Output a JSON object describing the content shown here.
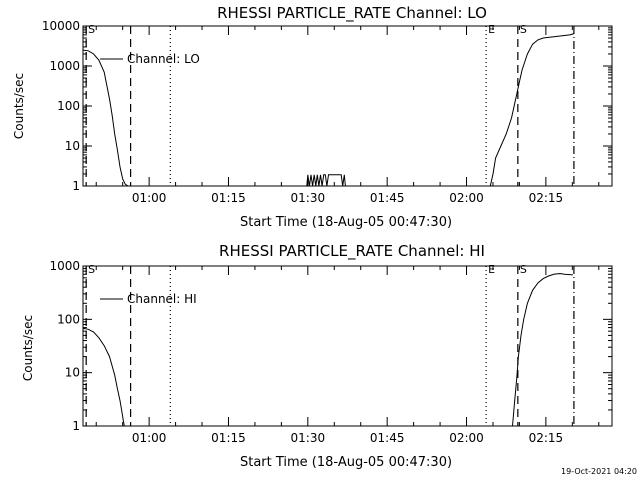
{
  "colors": {
    "background": "#ffffff",
    "foreground": "#000000"
  },
  "footer_timestamp": "19-Oct-2021 04:20",
  "chart_data": [
    {
      "type": "line",
      "title": "RHESSI PARTICLE_RATE Channel: LO",
      "xlabel": "Start Time (18-Aug-05 00:47:30)",
      "ylabel": "Counts/sec",
      "x_unit": "minutes after 00:47:30",
      "xlim": [
        0,
        100
      ],
      "ylim": [
        1,
        10000
      ],
      "yscale": "log",
      "x_ticks": [
        {
          "x": 12.5,
          "label": "01:00"
        },
        {
          "x": 27.5,
          "label": "01:15"
        },
        {
          "x": 42.5,
          "label": "01:30"
        },
        {
          "x": 57.5,
          "label": "01:45"
        },
        {
          "x": 72.5,
          "label": "02:00"
        },
        {
          "x": 87.5,
          "label": "02:15"
        }
      ],
      "y_ticks": [
        {
          "y": 1,
          "label": "1"
        },
        {
          "y": 10,
          "label": "10"
        },
        {
          "y": 100,
          "label": "100"
        },
        {
          "y": 1000,
          "label": "1000"
        },
        {
          "y": 10000,
          "label": "10000"
        }
      ],
      "legend": {
        "label": "Channel: LO",
        "position": "top-left"
      },
      "markers": [
        {
          "x": 0.6,
          "style": "dashed",
          "label": "S"
        },
        {
          "x": 9.0,
          "style": "dashed",
          "label": ""
        },
        {
          "x": 16.5,
          "style": "dotted",
          "label": ""
        },
        {
          "x": 76.2,
          "style": "dotted",
          "label": "E"
        },
        {
          "x": 82.2,
          "style": "dashed",
          "label": "S"
        },
        {
          "x": 92.8,
          "style": "dashdot",
          "label": ""
        }
      ],
      "series": [
        {
          "x": [
            0,
            1,
            2,
            3,
            4,
            5,
            5.5,
            6,
            6.5,
            7,
            7.5,
            8,
            8.5
          ],
          "y": [
            2500,
            2400,
            2000,
            1400,
            700,
            150,
            60,
            20,
            8,
            3,
            1.5,
            1.1,
            1
          ]
        },
        {
          "x": [
            42.3,
            42.5,
            42.8,
            43.1,
            43.4,
            43.7,
            44.0,
            44.3,
            44.6,
            44.9,
            45.2,
            45.5,
            45.8,
            46.1,
            46.4,
            46.7,
            47.0,
            47.3,
            47.6,
            47.9,
            48.2,
            48.5,
            48.8,
            49.1,
            49.4,
            49.6
          ],
          "y": [
            1,
            1.9,
            1,
            1.9,
            1,
            1.9,
            1,
            1.9,
            1,
            1.9,
            1,
            1.9,
            1.9,
            1,
            1.9,
            1.9,
            1.9,
            1.9,
            1.9,
            1.9,
            1.9,
            1.9,
            1.9,
            1,
            1.9,
            1
          ]
        },
        {
          "x": [
            77.0,
            77.5,
            78,
            79,
            80,
            81,
            82,
            82.5,
            83,
            84,
            85,
            86,
            87,
            88,
            89,
            90,
            91,
            92,
            92.6,
            92.8
          ],
          "y": [
            1,
            2,
            5,
            10,
            20,
            50,
            200,
            400,
            800,
            2000,
            3500,
            4500,
            5000,
            5200,
            5400,
            5600,
            5800,
            6000,
            6300,
            6500
          ]
        }
      ]
    },
    {
      "type": "line",
      "title": "RHESSI PARTICLE_RATE Channel: HI",
      "xlabel": "Start Time (18-Aug-05 00:47:30)",
      "ylabel": "Counts/sec",
      "x_unit": "minutes after 00:47:30",
      "xlim": [
        0,
        100
      ],
      "ylim": [
        1,
        1000
      ],
      "yscale": "log",
      "x_ticks": [
        {
          "x": 12.5,
          "label": "01:00"
        },
        {
          "x": 27.5,
          "label": "01:15"
        },
        {
          "x": 42.5,
          "label": "01:30"
        },
        {
          "x": 57.5,
          "label": "01:45"
        },
        {
          "x": 72.5,
          "label": "02:00"
        },
        {
          "x": 87.5,
          "label": "02:15"
        }
      ],
      "y_ticks": [
        {
          "y": 1,
          "label": "1"
        },
        {
          "y": 10,
          "label": "10"
        },
        {
          "y": 100,
          "label": "100"
        },
        {
          "y": 1000,
          "label": "1000"
        }
      ],
      "legend": {
        "label": "Channel: HI",
        "position": "top-left"
      },
      "markers": [
        {
          "x": 0.6,
          "style": "dashed",
          "label": "S"
        },
        {
          "x": 9.0,
          "style": "dashed",
          "label": ""
        },
        {
          "x": 16.5,
          "style": "dotted",
          "label": ""
        },
        {
          "x": 76.2,
          "style": "dotted",
          "label": "E"
        },
        {
          "x": 82.2,
          "style": "dashed",
          "label": "S"
        },
        {
          "x": 92.8,
          "style": "dashdot",
          "label": ""
        }
      ],
      "series": [
        {
          "x": [
            0,
            1,
            2,
            3,
            4,
            5,
            6,
            6.5,
            7,
            7.3,
            7.6,
            7.8
          ],
          "y": [
            68,
            65,
            58,
            45,
            32,
            20,
            9,
            5,
            3,
            2,
            1.3,
            1
          ]
        },
        {
          "x": [
            81.2,
            81.6,
            82,
            82.3,
            82.8,
            83.3,
            84,
            85,
            86,
            87,
            88,
            89,
            90,
            90.5,
            91,
            92,
            92.6
          ],
          "y": [
            1,
            3,
            8,
            20,
            50,
            100,
            200,
            350,
            480,
            580,
            650,
            700,
            720,
            715,
            700,
            690,
            680
          ]
        }
      ]
    }
  ]
}
